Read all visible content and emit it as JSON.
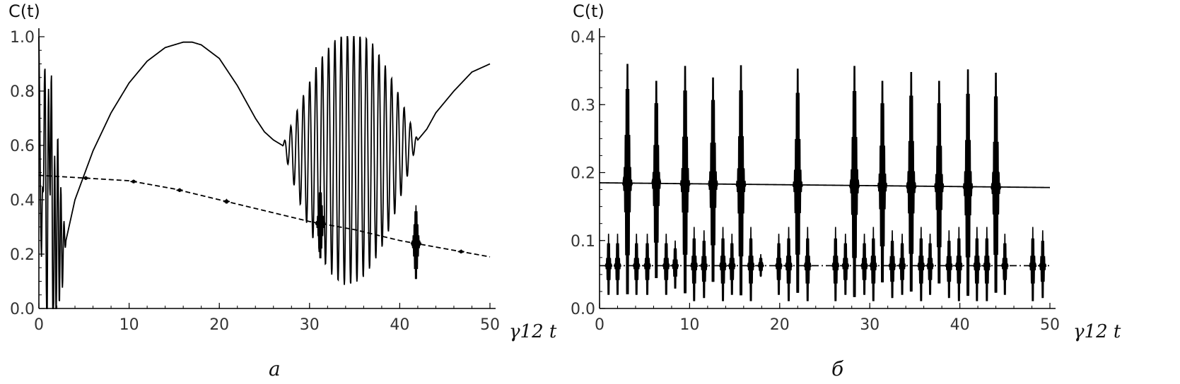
{
  "chart_data": [
    {
      "type": "line",
      "panel_caption": "a",
      "ylabel": "C(t)",
      "xlabel": "γ12 t",
      "xlim": [
        0,
        50
      ],
      "ylim": [
        0,
        1.0
      ],
      "xticks": [
        "0",
        "10",
        "20",
        "30",
        "40",
        "50"
      ],
      "yticks": [
        "0.0",
        "0.2",
        "0.4",
        "0.6",
        "0.8",
        "1.0"
      ],
      "grid": false,
      "series": [
        {
          "style": "solid",
          "x": [
            0,
            0.3,
            0.6,
            0.9,
            1.2,
            1.6,
            2.0,
            2.5,
            3,
            4,
            6,
            8,
            10,
            12,
            14,
            16,
            17,
            18,
            20,
            22,
            24,
            25,
            26,
            27,
            28,
            29,
            30,
            31,
            32,
            33,
            34,
            35,
            36,
            37,
            38,
            39,
            40,
            41,
            42,
            43,
            44,
            46,
            48,
            50
          ],
          "y": [
            1.0,
            0.1,
            0.86,
            0.05,
            0.83,
            0.1,
            0.35,
            0.22,
            0.25,
            0.4,
            0.58,
            0.72,
            0.83,
            0.91,
            0.96,
            0.98,
            0.98,
            0.97,
            0.92,
            0.82,
            0.7,
            0.65,
            0.62,
            0.6,
            0.58,
            0.57,
            0.56,
            0.56,
            0.55,
            0.55,
            0.55,
            0.56,
            0.56,
            0.57,
            0.57,
            0.58,
            0.59,
            0.6,
            0.62,
            0.66,
            0.72,
            0.8,
            0.87,
            0.9
          ],
          "oscillation": [
            [
              0,
              3,
              0.45
            ],
            [
              27,
              42,
              0.55
            ]
          ]
        },
        {
          "style": "dashed",
          "x": [
            0,
            5,
            10,
            15,
            20,
            25,
            30,
            35,
            40,
            45,
            50
          ],
          "y": [
            0.49,
            0.48,
            0.47,
            0.44,
            0.4,
            0.36,
            0.32,
            0.29,
            0.25,
            0.22,
            0.19
          ],
          "bursts": [
            [
              5.2,
              0.07
            ],
            [
              10.5,
              0.45
            ],
            [
              15.6,
              0.06
            ],
            [
              20.8,
              0.4
            ],
            [
              31.2,
              0.45
            ],
            [
              41.8,
              0.38
            ],
            [
              46.8,
              0.04
            ]
          ]
        }
      ]
    },
    {
      "type": "line",
      "panel_caption": "б",
      "ylabel": "C(t)",
      "xlabel": "γ12 t",
      "xlim": [
        0,
        50
      ],
      "ylim": [
        0,
        0.4
      ],
      "xticks": [
        "0",
        "10",
        "20",
        "30",
        "40",
        "50"
      ],
      "yticks": [
        "0.0",
        "0.1",
        "0.2",
        "0.3",
        "0.4"
      ],
      "grid": false,
      "series": [
        {
          "style": "solid",
          "x": [
            0,
            50
          ],
          "y": [
            0.185,
            0.178
          ],
          "bursts": [
            [
              3.1,
              0.36
            ],
            [
              6.3,
              0.335
            ],
            [
              9.5,
              0.357
            ],
            [
              12.6,
              0.34
            ],
            [
              15.7,
              0.358
            ],
            [
              22.0,
              0.353
            ],
            [
              28.3,
              0.357
            ],
            [
              31.4,
              0.335
            ],
            [
              34.6,
              0.348
            ],
            [
              37.7,
              0.335
            ],
            [
              40.9,
              0.352
            ],
            [
              44.0,
              0.347
            ]
          ]
        },
        {
          "style": "dash-dot",
          "x": [
            0,
            50
          ],
          "y": [
            0.063,
            0.063
          ],
          "bursts": [
            [
              1.0,
              0.11
            ],
            [
              2.0,
              0.11
            ],
            [
              4.1,
              0.11
            ],
            [
              5.3,
              0.11
            ],
            [
              7.4,
              0.11
            ],
            [
              8.4,
              0.1
            ],
            [
              10.5,
              0.12
            ],
            [
              11.6,
              0.115
            ],
            [
              13.7,
              0.12
            ],
            [
              14.7,
              0.11
            ],
            [
              16.8,
              0.12
            ],
            [
              17.9,
              0.08
            ],
            [
              19.9,
              0.11
            ],
            [
              21.0,
              0.12
            ],
            [
              23.1,
              0.12
            ],
            [
              26.2,
              0.12
            ],
            [
              27.3,
              0.11
            ],
            [
              29.4,
              0.11
            ],
            [
              30.4,
              0.12
            ],
            [
              32.5,
              0.115
            ],
            [
              33.6,
              0.11
            ],
            [
              35.7,
              0.12
            ],
            [
              36.7,
              0.11
            ],
            [
              38.8,
              0.115
            ],
            [
              39.9,
              0.12
            ],
            [
              41.9,
              0.12
            ],
            [
              43.0,
              0.12
            ],
            [
              45.0,
              0.11
            ],
            [
              48.1,
              0.12
            ],
            [
              49.2,
              0.115
            ]
          ]
        }
      ]
    }
  ]
}
